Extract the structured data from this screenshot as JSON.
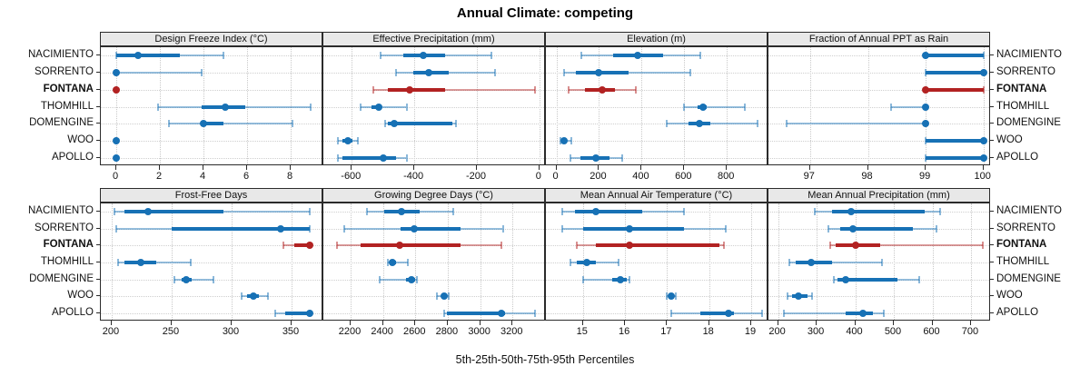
{
  "title": "Annual Climate: competing",
  "footer": "5th-25th-50th-75th-95th Percentiles",
  "sites": [
    "NACIMIENTO",
    "SORRENTO",
    "FONTANA",
    "THOMHILL",
    "DOMENGINE",
    "WOO",
    "APOLLO"
  ],
  "highlight_site": "FONTANA",
  "percentile_labels": [
    "5th",
    "25th",
    "50th",
    "75th",
    "95th"
  ],
  "colors": {
    "series_blue": "#1771b5",
    "highlight_red": "#b22222",
    "strip_bg": "#e8e8e8",
    "grid": "#cccccc",
    "border": "#2b2b2b"
  },
  "chart_data": [
    {
      "type": "dot-interval",
      "row": 0,
      "col": 0,
      "title": "Design Freeze Index (°C)",
      "ticks": [
        0,
        2,
        4,
        6,
        8
      ],
      "domain": [
        -0.71,
        9.5
      ],
      "series": {
        "NACIMIENTO": [
          0,
          0,
          1,
          2.9,
          4.9
        ],
        "SORRENTO": [
          0,
          0,
          0,
          0,
          3.9
        ],
        "FONTANA": [
          0,
          0,
          0,
          0,
          0
        ],
        "THOMHILL": [
          1.9,
          3.9,
          5,
          5.9,
          8.9
        ],
        "DOMENGINE": [
          2.4,
          3.9,
          4,
          4.9,
          8.1
        ],
        "WOO": [
          0,
          0,
          0,
          0,
          0
        ],
        "APOLLO": [
          0,
          0,
          0,
          0,
          0
        ]
      }
    },
    {
      "type": "dot-interval",
      "row": 0,
      "col": 1,
      "title": "Effective Precipitation (mm)",
      "ticks": [
        -600,
        -400,
        -200,
        0
      ],
      "domain": [
        -691,
        21
      ],
      "series": {
        "NACIMIENTO": [
          -508,
          -435,
          -372,
          -302,
          -153
        ],
        "SORRENTO": [
          -459,
          -404,
          -353,
          -289,
          -142
        ],
        "FONTANA": [
          -530,
          -484,
          -416,
          -302,
          -13
        ],
        "THOMHILL": [
          -572,
          -536,
          -513,
          -504,
          -425
        ],
        "DOMENGINE": [
          -494,
          -486,
          -464,
          -278,
          -267
        ],
        "WOO": [
          -645,
          -630,
          -614,
          -597,
          -581
        ],
        "APOLLO": [
          -645,
          -630,
          -500,
          -460,
          -425
        ]
      }
    },
    {
      "type": "dot-interval",
      "row": 0,
      "col": 2,
      "title": "Elevation (m)",
      "ticks": [
        0,
        200,
        400,
        600,
        800
      ],
      "domain": [
        -49,
        995
      ],
      "series": {
        "NACIMIENTO": [
          115,
          265,
          382,
          500,
          675
        ],
        "SORRENTO": [
          37,
          93,
          196,
          340,
          629
        ],
        "FONTANA": [
          57,
          136,
          217,
          276,
          372
        ],
        "THOMHILL": [
          600,
          662,
          687,
          706,
          884
        ],
        "DOMENGINE": [
          519,
          618,
          669,
          722,
          944
        ],
        "WOO": [
          20,
          28,
          36,
          50,
          72
        ],
        "APOLLO": [
          67,
          114,
          186,
          250,
          309
        ]
      }
    },
    {
      "type": "dot-interval",
      "row": 0,
      "col": 3,
      "title": "Fraction of Annual PPT as Rain",
      "ticks": [
        97,
        98,
        99,
        100
      ],
      "domain": [
        96.28,
        100.13
      ],
      "series": {
        "NACIMIENTO": [
          99,
          99,
          99,
          100,
          100
        ],
        "SORRENTO": [
          99,
          99,
          100,
          100,
          100
        ],
        "FONTANA": [
          99,
          99,
          99,
          100,
          100
        ],
        "THOMHILL": [
          98.4,
          98.95,
          99,
          99,
          99
        ],
        "DOMENGINE": [
          96.6,
          99,
          99,
          99,
          99
        ],
        "WOO": [
          99,
          99,
          100,
          100,
          100
        ],
        "APOLLO": [
          99,
          99,
          100,
          100,
          100
        ]
      }
    },
    {
      "type": "dot-interval",
      "row": 1,
      "col": 0,
      "title": "Frost-Free Days",
      "ticks": [
        200,
        250,
        300,
        350
      ],
      "domain": [
        191,
        376.5
      ],
      "series": {
        "NACIMIENTO": [
          202,
          211,
          230,
          293,
          365
        ],
        "SORRENTO": [
          204,
          250,
          341,
          365,
          365
        ],
        "FONTANA": [
          343,
          352,
          365,
          365,
          365
        ],
        "THOMHILL": [
          205,
          211,
          224,
          237,
          266
        ],
        "DOMENGINE": [
          252,
          258,
          262,
          267,
          285
        ],
        "WOO": [
          308,
          313,
          318,
          323,
          330
        ],
        "APOLLO": [
          336,
          345,
          365,
          365,
          365
        ]
      }
    },
    {
      "type": "dot-interval",
      "row": 1,
      "col": 1,
      "title": "Growing Degree Days (°C)",
      "ticks": [
        2200,
        2400,
        2600,
        2800,
        3000,
        3200
      ],
      "domain": [
        2032,
        3406
      ],
      "series": {
        "NACIMIENTO": [
          2300,
          2410,
          2515,
          2625,
          2835
        ],
        "SORRENTO": [
          2160,
          2510,
          2590,
          2880,
          3140
        ],
        "FONTANA": [
          2115,
          2260,
          2505,
          2880,
          3130
        ],
        "THOMHILL": [
          2430,
          2445,
          2460,
          2480,
          2555
        ],
        "DOMENGINE": [
          2380,
          2540,
          2575,
          2600,
          2610
        ],
        "WOO": [
          2735,
          2760,
          2775,
          2790,
          2805
        ],
        "APOLLO": [
          2775,
          2795,
          3130,
          3155,
          3340
        ]
      }
    },
    {
      "type": "dot-interval",
      "row": 1,
      "col": 2,
      "title": "Mean Annual Air Temperature (°C)",
      "ticks": [
        15,
        16,
        17,
        18,
        19
      ],
      "domain": [
        14.12,
        19.41
      ],
      "series": {
        "NACIMIENTO": [
          14.5,
          14.8,
          15.3,
          16.4,
          17.4
        ],
        "SORRENTO": [
          14.5,
          15.0,
          16.1,
          17.4,
          18.4
        ],
        "FONTANA": [
          14.85,
          15.3,
          16.1,
          18.25,
          18.35
        ],
        "THOMHILL": [
          14.7,
          14.85,
          15.1,
          15.3,
          15.85
        ],
        "DOMENGINE": [
          15.0,
          15.7,
          15.9,
          16.05,
          16.1
        ],
        "WOO": [
          17.0,
          17.05,
          17.1,
          17.15,
          17.2
        ],
        "APOLLO": [
          17.1,
          17.8,
          18.45,
          18.6,
          19.25
        ]
      }
    },
    {
      "type": "dot-interval",
      "row": 1,
      "col": 3,
      "title": "Mean Annual Precipitation (mm)",
      "ticks": [
        200,
        300,
        400,
        500,
        600,
        700
      ],
      "domain": [
        175,
        752
      ],
      "series": {
        "NACIMIENTO": [
          295,
          340,
          390,
          580,
          620
        ],
        "SORRENTO": [
          330,
          360,
          395,
          550,
          610
        ],
        "FONTANA": [
          335,
          350,
          400,
          465,
          730
        ],
        "THOMHILL": [
          230,
          245,
          286,
          340,
          470
        ],
        "DOMENGINE": [
          345,
          355,
          375,
          510,
          565
        ],
        "WOO": [
          225,
          235,
          253,
          275,
          289
        ],
        "APOLLO": [
          215,
          375,
          420,
          445,
          475
        ]
      }
    }
  ]
}
